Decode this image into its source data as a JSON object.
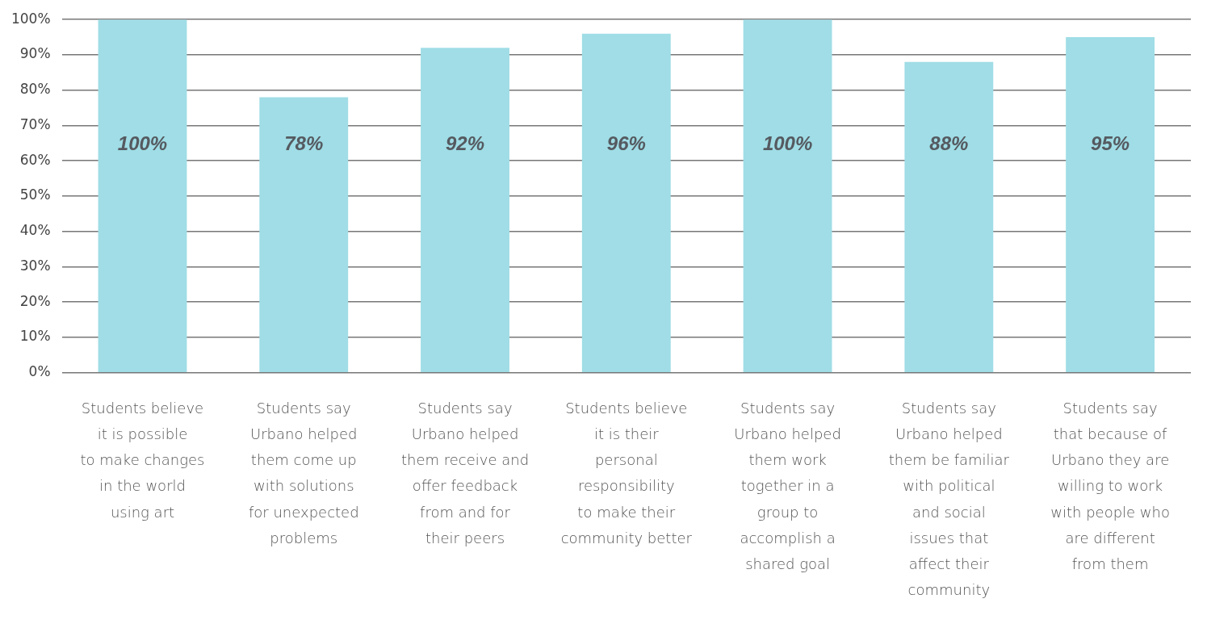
{
  "chart_data": {
    "type": "bar",
    "categories": [
      "Students believe it is possible to make changes in the world using art",
      "Students say Urbano helped them come up with solutions for unexpected problems",
      "Students say Urbano helped them receive and offer feedback from and for their peers",
      "Students believe it is their personal responsibility to make their community better",
      "Students say Urbano helped them work together in a group to accomplish a shared goal",
      "Students say Urbano helped them be familiar with political and social issues that affect their community",
      "Students say that because of Urbano they are willing to work with people who are different from them"
    ],
    "values": [
      100,
      78,
      92,
      96,
      100,
      88,
      95
    ],
    "color": "#a0dde6",
    "value_labels": [
      "100%",
      "78%",
      "92%",
      "96%",
      "100%",
      "88%",
      "95%"
    ],
    "ylim": [
      0,
      100
    ],
    "yticks": [
      {
        "value": 0,
        "label": "0%"
      },
      {
        "value": 10,
        "label": "10%"
      },
      {
        "value": 20,
        "label": "20%"
      },
      {
        "value": 30,
        "label": "30%"
      },
      {
        "value": 40,
        "label": "40%"
      },
      {
        "value": 50,
        "label": "50%"
      },
      {
        "value": 60,
        "label": "60%"
      },
      {
        "value": 70,
        "label": "70%"
      },
      {
        "value": 80,
        "label": "80%"
      },
      {
        "value": 90,
        "label": "90%"
      },
      {
        "value": 100,
        "label": "100%"
      }
    ],
    "grid": "y"
  }
}
